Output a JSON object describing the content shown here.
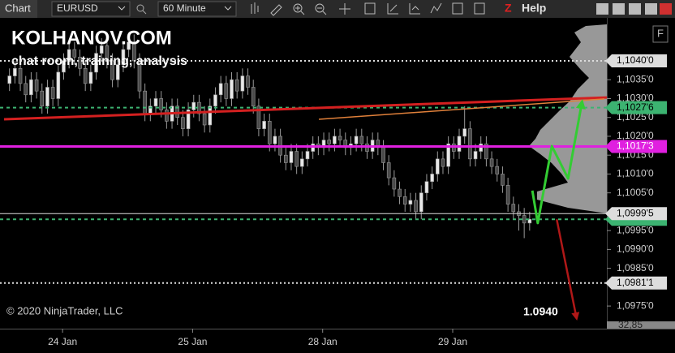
{
  "toolbar": {
    "tab": "Chart",
    "instrument": "EURUSD",
    "interval": "60 Minute",
    "z": "Z",
    "help": "Help",
    "panel_button": "F"
  },
  "chart_data": {
    "type": "candlestick",
    "title": "KOLHANOV.COM",
    "subtitle": "chat room, training, analysis",
    "copyright": "© 2020 NinjaTrader, LLC",
    "annotation": "1.0940",
    "volume_label": "32,85",
    "up_color": "#e8e8e8",
    "down_color": "#4a4a4a",
    "wick_color": "#9a9a9a",
    "xlim": [
      -0.75,
      111.25
    ],
    "xticks": [
      {
        "value": 10.8,
        "label": "24 Jan"
      },
      {
        "value": 34.8,
        "label": "25 Jan"
      },
      {
        "value": 58.8,
        "label": "28 Jan"
      },
      {
        "value": 82.8,
        "label": "29 Jan"
      }
    ],
    "ylim": [
      1.0969,
      1.10514
    ],
    "yticks": [
      {
        "value": 1.1035,
        "label": "1,1035'0"
      },
      {
        "value": 1.103,
        "label": "1,1030'0"
      },
      {
        "value": 1.1025,
        "label": "1,1025'0"
      },
      {
        "value": 1.102,
        "label": "1,1020'0"
      },
      {
        "value": 1.1015,
        "label": "1,1015'0"
      },
      {
        "value": 1.101,
        "label": "1,1010'0"
      },
      {
        "value": 1.1005,
        "label": "1,1005'0"
      },
      {
        "value": 1.0995,
        "label": "1,0995'0"
      },
      {
        "value": 1.099,
        "label": "1,0990'0"
      },
      {
        "value": 1.0985,
        "label": "1,0985'0"
      },
      {
        "value": 1.0975,
        "label": "1,0975'0"
      }
    ],
    "x": [
      1,
      2,
      3,
      4,
      5,
      6,
      7,
      8,
      9,
      10,
      11,
      12,
      13,
      14,
      15,
      16,
      17,
      18,
      19,
      20,
      21,
      22,
      23,
      24,
      25,
      26,
      27,
      28,
      29,
      30,
      31,
      32,
      33,
      34,
      35,
      36,
      37,
      38,
      39,
      40,
      41,
      42,
      43,
      44,
      45,
      46,
      47,
      48,
      49,
      50,
      51,
      52,
      53,
      54,
      55,
      56,
      57,
      58,
      59,
      60,
      61,
      62,
      63,
      64,
      65,
      66,
      67,
      68,
      69,
      70,
      71,
      72,
      73,
      74,
      75,
      76,
      77,
      78,
      79,
      80,
      81,
      82,
      83,
      84,
      85,
      86,
      87,
      88,
      89,
      90,
      91,
      92,
      93,
      94,
      95,
      96,
      97
    ],
    "candles": [
      [
        1.1034,
        1.1038,
        1.1032,
        1.1036
      ],
      [
        1.1036,
        1.104,
        1.1034,
        1.1038
      ],
      [
        1.1038,
        1.104,
        1.1032,
        1.1034
      ],
      [
        1.1034,
        1.1036,
        1.1029,
        1.1031
      ],
      [
        1.1031,
        1.1037,
        1.1029,
        1.1035
      ],
      [
        1.1035,
        1.1037,
        1.103,
        1.1032
      ],
      [
        1.1032,
        1.1034,
        1.1026,
        1.1028
      ],
      [
        1.1028,
        1.1035,
        1.1026,
        1.1033
      ],
      [
        1.1033,
        1.1035,
        1.1028,
        1.103
      ],
      [
        1.103,
        1.1039,
        1.1028,
        1.1037
      ],
      [
        1.1037,
        1.1042,
        1.1035,
        1.104
      ],
      [
        1.104,
        1.1045,
        1.1038,
        1.1043
      ],
      [
        1.1043,
        1.1045,
        1.1039,
        1.1041
      ],
      [
        1.1041,
        1.1043,
        1.1036,
        1.1038
      ],
      [
        1.1038,
        1.104,
        1.1032,
        1.1034
      ],
      [
        1.1034,
        1.1039,
        1.1032,
        1.1037
      ],
      [
        1.1037,
        1.1044,
        1.1035,
        1.1042
      ],
      [
        1.1042,
        1.1046,
        1.104,
        1.1044
      ],
      [
        1.1044,
        1.1046,
        1.1038,
        1.104
      ],
      [
        1.104,
        1.1042,
        1.1033,
        1.1035
      ],
      [
        1.1035,
        1.1041,
        1.1033,
        1.1039
      ],
      [
        1.1039,
        1.1045,
        1.1037,
        1.1043
      ],
      [
        1.1043,
        1.1047,
        1.1041,
        1.1045
      ],
      [
        1.1045,
        1.1047,
        1.1038,
        1.104
      ],
      [
        1.104,
        1.1042,
        1.103,
        1.1032
      ],
      [
        1.1032,
        1.1034,
        1.1024,
        1.1026
      ],
      [
        1.1026,
        1.103,
        1.1024,
        1.1028
      ],
      [
        1.1028,
        1.1032,
        1.1026,
        1.103
      ],
      [
        1.103,
        1.1032,
        1.1025,
        1.1027
      ],
      [
        1.1027,
        1.1029,
        1.1022,
        1.1024
      ],
      [
        1.1024,
        1.103,
        1.1022,
        1.1028
      ],
      [
        1.1028,
        1.103,
        1.1023,
        1.1025
      ],
      [
        1.1025,
        1.1027,
        1.102,
        1.1022
      ],
      [
        1.1022,
        1.1029,
        1.102,
        1.1027
      ],
      [
        1.1027,
        1.1031,
        1.1025,
        1.1029
      ],
      [
        1.1029,
        1.1031,
        1.1024,
        1.1026
      ],
      [
        1.1026,
        1.1028,
        1.1021,
        1.1023
      ],
      [
        1.1023,
        1.103,
        1.1021,
        1.1028
      ],
      [
        1.1028,
        1.1033,
        1.1026,
        1.1031
      ],
      [
        1.1031,
        1.1036,
        1.1029,
        1.1034
      ],
      [
        1.1034,
        1.1036,
        1.1028,
        1.103
      ],
      [
        1.103,
        1.1037,
        1.1028,
        1.1035
      ],
      [
        1.1035,
        1.1037,
        1.103,
        1.1032
      ],
      [
        1.1032,
        1.1038,
        1.103,
        1.1036
      ],
      [
        1.1036,
        1.1038,
        1.1031,
        1.1033
      ],
      [
        1.1033,
        1.1035,
        1.1026,
        1.1028
      ],
      [
        1.1028,
        1.103,
        1.102,
        1.1022
      ],
      [
        1.1022,
        1.1026,
        1.102,
        1.1024
      ],
      [
        1.1024,
        1.1026,
        1.1016,
        1.1018
      ],
      [
        1.1018,
        1.1022,
        1.1016,
        1.102
      ],
      [
        1.102,
        1.1022,
        1.1013,
        1.1015
      ],
      [
        1.1015,
        1.1017,
        1.1011,
        1.1013
      ],
      [
        1.1013,
        1.1018,
        1.1011,
        1.1016
      ],
      [
        1.1016,
        1.1018,
        1.101,
        1.1012
      ],
      [
        1.1012,
        1.1016,
        1.101,
        1.1014
      ],
      [
        1.1014,
        1.1018,
        1.1012,
        1.1016
      ],
      [
        1.1016,
        1.102,
        1.1014,
        1.1018
      ],
      [
        1.1018,
        1.102,
        1.1015,
        1.1017
      ],
      [
        1.1017,
        1.1021,
        1.1015,
        1.1019
      ],
      [
        1.1019,
        1.1021,
        1.1016,
        1.1018
      ],
      [
        1.1018,
        1.1022,
        1.1016,
        1.102
      ],
      [
        1.102,
        1.1022,
        1.1017,
        1.1019
      ],
      [
        1.1019,
        1.1021,
        1.1015,
        1.1017
      ],
      [
        1.1017,
        1.102,
        1.1015,
        1.1018
      ],
      [
        1.1018,
        1.1022,
        1.1016,
        1.102
      ],
      [
        1.102,
        1.1022,
        1.1016,
        1.1018
      ],
      [
        1.1018,
        1.102,
        1.1014,
        1.1016
      ],
      [
        1.1016,
        1.1021,
        1.1014,
        1.1019
      ],
      [
        1.1019,
        1.1021,
        1.1015,
        1.1017
      ],
      [
        1.1017,
        1.1019,
        1.1011,
        1.1013
      ],
      [
        1.1013,
        1.1015,
        1.1007,
        1.1009
      ],
      [
        1.1009,
        1.1011,
        1.1004,
        1.1006
      ],
      [
        1.1006,
        1.1008,
        1.1002,
        1.1004
      ],
      [
        1.1004,
        1.1006,
        1.1,
        1.1002
      ],
      [
        1.1002,
        1.1005,
        1.1,
        1.1003
      ],
      [
        1.1003,
        1.1005,
        1.0998,
        1.1
      ],
      [
        1.1,
        1.1007,
        1.0998,
        1.1005
      ],
      [
        1.1005,
        1.101,
        1.1003,
        1.1008
      ],
      [
        1.1008,
        1.1012,
        1.1006,
        1.101
      ],
      [
        1.101,
        1.1016,
        1.1008,
        1.1014
      ],
      [
        1.1014,
        1.1016,
        1.101,
        1.1012
      ],
      [
        1.1012,
        1.102,
        1.101,
        1.1018
      ],
      [
        1.1018,
        1.102,
        1.1014,
        1.1016
      ],
      [
        1.1016,
        1.1022,
        1.1014,
        1.102
      ],
      [
        1.102,
        1.1028,
        1.1018,
        1.1022
      ],
      [
        1.1022,
        1.1024,
        1.1012,
        1.1014
      ],
      [
        1.1014,
        1.1018,
        1.1012,
        1.1016
      ],
      [
        1.1016,
        1.102,
        1.1014,
        1.1018
      ],
      [
        1.1018,
        1.102,
        1.1012,
        1.1014
      ],
      [
        1.1014,
        1.1016,
        1.101,
        1.1012
      ],
      [
        1.1012,
        1.1014,
        1.1008,
        1.101
      ],
      [
        1.101,
        1.1012,
        1.1005,
        1.1007
      ],
      [
        1.1007,
        1.1009,
        1.1,
        1.1002
      ],
      [
        1.1002,
        1.1004,
        1.0998,
        1.1
      ],
      [
        1.1,
        1.1002,
        1.0995,
        1.0999
      ],
      [
        1.0999,
        1.1001,
        1.0993,
        1.0997
      ],
      [
        1.0997,
        1.1,
        1.0995,
        1.0998
      ]
    ],
    "levels": [
      {
        "value": 1.104,
        "label": "1,1040'0",
        "color": "#dddddd",
        "text_color": "#000000",
        "style": "dotted"
      },
      {
        "value": 1.10276,
        "label": "1,1027'6",
        "color": "#3cb371",
        "text_color": "#000000",
        "style": "dashed"
      },
      {
        "value": 1.10173,
        "label": "1,1017'3",
        "color": "#e020e0",
        "text_color": "#ffffff",
        "style": "solid"
      },
      {
        "value": 1.0998,
        "color": "#3cb371",
        "style": "dashed"
      },
      {
        "value": 1.09995,
        "label": "1,0999'5",
        "color": "#dddddd",
        "text_color": "#000000",
        "style": "thin"
      },
      {
        "value": 1.09811,
        "label": "1,0981'1",
        "color": "#dddddd",
        "text_color": "#000000",
        "style": "dotted"
      }
    ],
    "lines": [
      {
        "color": "#d42020",
        "width": 3,
        "x": [
          0,
          111.25
        ],
        "y": [
          1.10245,
          1.10303
        ]
      },
      {
        "color": "#e0803a",
        "width": 1.5,
        "x": [
          58.1,
          110.8
        ],
        "y": [
          1.10245,
          1.10299
        ]
      },
      {
        "color": "#33cc33",
        "width": 3,
        "arrow": true,
        "x": [
          97.5,
          98.5,
          101.1,
          104.1,
          106.6
        ],
        "y": [
          1.10056,
          1.0997,
          1.10174,
          1.10088,
          1.10286
        ]
      },
      {
        "color": "#b01818",
        "width": 2.5,
        "arrow": true,
        "x": [
          102.0,
          105.6
        ],
        "y": [
          1.0998,
          1.09722
        ]
      }
    ]
  }
}
